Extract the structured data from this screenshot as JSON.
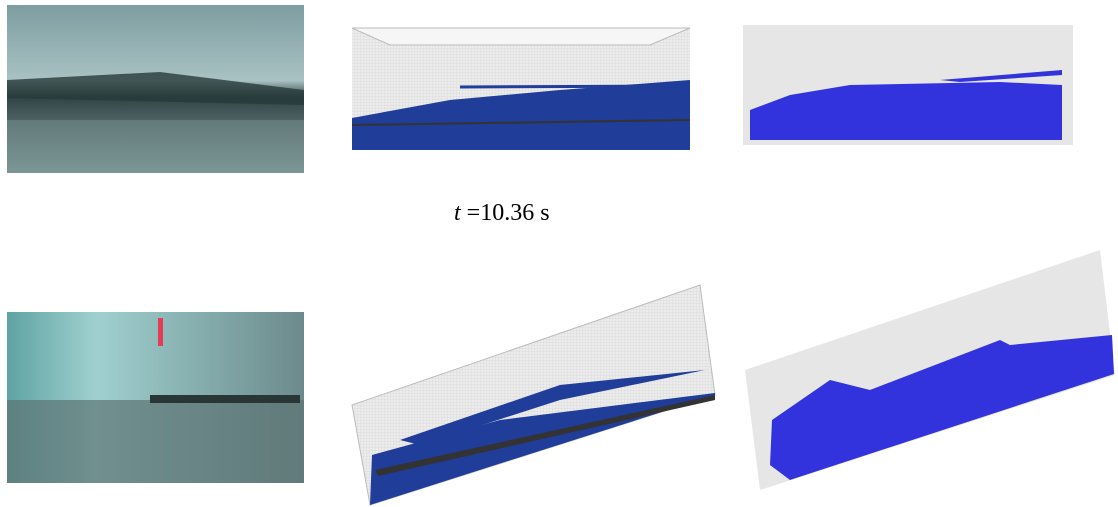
{
  "caption": {
    "variable": "t",
    "text": "=10.36 s"
  }
}
